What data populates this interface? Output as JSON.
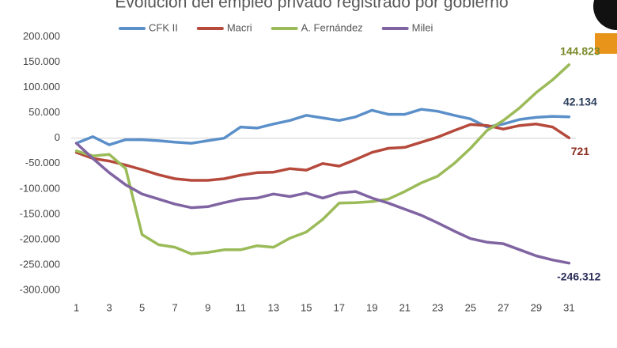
{
  "chart_data": {
    "type": "line",
    "title": "Evolución del empleo privado registrado por gobierno",
    "x": [
      1,
      2,
      3,
      4,
      5,
      6,
      7,
      8,
      9,
      10,
      11,
      12,
      13,
      14,
      15,
      16,
      17,
      18,
      19,
      20,
      21,
      22,
      23,
      24,
      25,
      26,
      27,
      28,
      29,
      30,
      31
    ],
    "xlim": [
      0.2,
      31.8
    ],
    "xticks": [
      1,
      3,
      5,
      7,
      9,
      11,
      13,
      15,
      17,
      19,
      21,
      23,
      25,
      27,
      29,
      31
    ],
    "ylim": [
      -320000,
      210000
    ],
    "yticks": [
      {
        "value": 200000,
        "label": "200.000"
      },
      {
        "value": 150000,
        "label": "150.000"
      },
      {
        "value": 100000,
        "label": "100.000"
      },
      {
        "value": 50000,
        "label": "50.000"
      },
      0,
      {
        "value": -50000,
        "label": "-50.000"
      },
      {
        "value": -100000,
        "label": "-100.000"
      },
      {
        "value": -150000,
        "label": "-150.000"
      },
      {
        "value": -200000,
        "label": "-200.000"
      },
      {
        "value": -250000,
        "label": "-250.000"
      },
      {
        "value": -300000,
        "label": "-300.000"
      }
    ],
    "series": [
      {
        "name": "CFK II",
        "color": "#5b8fc9",
        "label_color": "#2c3e5a",
        "values": [
          -10000,
          3000,
          -13000,
          -3000,
          -3000,
          -5000,
          -8000,
          -10000,
          -5000,
          0,
          22000,
          20000,
          28000,
          35000,
          45000,
          40000,
          35000,
          42000,
          55000,
          47000,
          47000,
          57000,
          53000,
          45000,
          38000,
          22000,
          28000,
          37000,
          41000,
          43000,
          42134
        ],
        "value_labels": [
          null,
          null,
          null,
          null,
          null,
          null,
          null,
          null,
          null,
          null,
          null,
          null,
          null,
          null,
          null,
          null,
          null,
          null,
          null,
          null,
          null,
          null,
          null,
          null,
          null,
          null,
          null,
          null,
          null,
          null,
          "42.134"
        ]
      },
      {
        "name": "Macri",
        "color": "#b5493b",
        "label_color": "#8b2e1e",
        "values": [
          -28000,
          -40000,
          -45000,
          -53000,
          -62000,
          -72000,
          -80000,
          -83000,
          -83000,
          -80000,
          -73000,
          -68000,
          -67000,
          -60000,
          -63000,
          -50000,
          -55000,
          -42000,
          -28000,
          -20000,
          -18000,
          -8000,
          2000,
          15000,
          27000,
          25000,
          18000,
          25000,
          28000,
          22000,
          721
        ],
        "value_labels": [
          null,
          null,
          null,
          null,
          null,
          null,
          null,
          null,
          null,
          null,
          null,
          null,
          null,
          null,
          null,
          null,
          null,
          null,
          null,
          null,
          null,
          null,
          null,
          null,
          null,
          null,
          null,
          null,
          null,
          null,
          "721"
        ]
      },
      {
        "name": "A. Fernández",
        "color": "#9bbb59",
        "label_color": "#7a8a2a",
        "values": [
          -25000,
          -35000,
          -32000,
          -60000,
          -190000,
          -210000,
          -215000,
          -228000,
          -225000,
          -220000,
          -220000,
          -212000,
          -215000,
          -197000,
          -185000,
          -160000,
          -128000,
          -127000,
          -125000,
          -120000,
          -105000,
          -88000,
          -75000,
          -50000,
          -20000,
          15000,
          35000,
          60000,
          90000,
          115000,
          144823
        ],
        "value_labels": [
          null,
          null,
          null,
          null,
          null,
          null,
          null,
          null,
          null,
          null,
          null,
          null,
          null,
          null,
          null,
          null,
          null,
          null,
          null,
          null,
          null,
          null,
          null,
          null,
          null,
          null,
          null,
          null,
          null,
          null,
          "144.823"
        ]
      },
      {
        "name": "Milei",
        "color": "#8064a2",
        "label_color": "#2c2e5a",
        "values": [
          -10000,
          -40000,
          -68000,
          -92000,
          -110000,
          -120000,
          -130000,
          -137000,
          -135000,
          -127000,
          -120000,
          -118000,
          -110000,
          -115000,
          -108000,
          -118000,
          -108000,
          -105000,
          -118000,
          -128000,
          -140000,
          -152000,
          -167000,
          -183000,
          -198000,
          -205000,
          -208000,
          -220000,
          -232000,
          -240000,
          -246312
        ],
        "value_labels": [
          null,
          null,
          null,
          null,
          null,
          null,
          null,
          null,
          null,
          null,
          null,
          null,
          null,
          null,
          null,
          null,
          null,
          null,
          null,
          null,
          null,
          null,
          null,
          null,
          null,
          null,
          null,
          null,
          null,
          null,
          "-246.312"
        ]
      }
    ]
  }
}
